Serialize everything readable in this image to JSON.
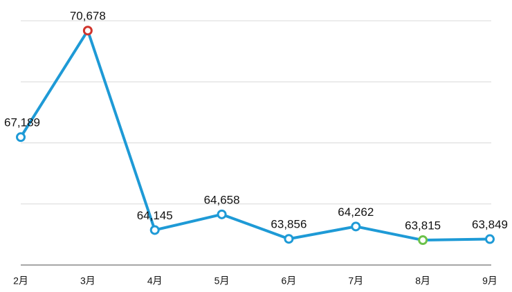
{
  "chart_data": {
    "type": "line",
    "categories": [
      "2月",
      "3月",
      "4月",
      "5月",
      "6月",
      "7月",
      "8月",
      "9月"
    ],
    "series": [
      {
        "color": "#1e9ad6",
        "values": [
          67189,
          70678,
          64145,
          64658,
          63856,
          64262,
          63815,
          63849
        ],
        "value_labels": [
          "67,189",
          "70,678",
          "64,145",
          "64,658",
          "63,856",
          "64,262",
          "63,815",
          "63,849"
        ],
        "point_colors": [
          "#1e9ad6",
          "#d0342c",
          "#1e9ad6",
          "#1e9ad6",
          "#1e9ad6",
          "#1e9ad6",
          "#6cc24a",
          "#1e9ad6"
        ]
      }
    ],
    "ylim": [
      63000,
      71000
    ],
    "yticks": [
      63000,
      65000,
      67000,
      69000,
      71000
    ],
    "grid": true
  }
}
